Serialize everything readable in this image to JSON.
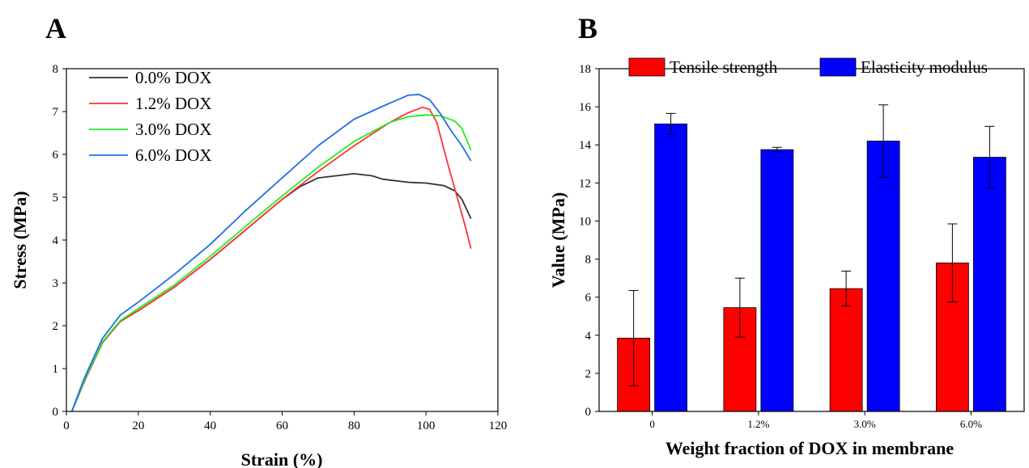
{
  "panels": {
    "a_label": "A",
    "b_label": "B"
  },
  "colors": {
    "black": "#333333",
    "red": "#ff3333",
    "green": "#22ee22",
    "blue": "#1f6fe6",
    "bar_red": "#ff0000",
    "bar_blue": "#0000ff"
  },
  "chart_data": [
    {
      "type": "line",
      "panel": "A",
      "xlabel": "Strain (%)",
      "ylabel": "Stress (MPa)",
      "xlim": [
        0,
        120
      ],
      "ylim": [
        0,
        8
      ],
      "xticks": [
        0,
        20,
        40,
        60,
        80,
        100,
        120
      ],
      "yticks": [
        0,
        1,
        2,
        3,
        4,
        5,
        6,
        7,
        8
      ],
      "legend_position": "top-left",
      "series": [
        {
          "name": "0.0% DOX",
          "color": "#333333",
          "points": [
            [
              1.5,
              0
            ],
            [
              5,
              0.7
            ],
            [
              10,
              1.6
            ],
            [
              15,
              2.1
            ],
            [
              20,
              2.35
            ],
            [
              30,
              2.9
            ],
            [
              40,
              3.55
            ],
            [
              50,
              4.25
            ],
            [
              60,
              4.95
            ],
            [
              65,
              5.25
            ],
            [
              70,
              5.45
            ],
            [
              75,
              5.5
            ],
            [
              80,
              5.55
            ],
            [
              85,
              5.5
            ],
            [
              88,
              5.42
            ],
            [
              95,
              5.35
            ],
            [
              100,
              5.33
            ],
            [
              105,
              5.27
            ],
            [
              108,
              5.15
            ],
            [
              110,
              4.95
            ],
            [
              112.5,
              4.5
            ]
          ]
        },
        {
          "name": "1.2% DOX",
          "color": "#ff3333",
          "points": [
            [
              1.5,
              0
            ],
            [
              5,
              0.7
            ],
            [
              10,
              1.6
            ],
            [
              15,
              2.1
            ],
            [
              20,
              2.35
            ],
            [
              30,
              2.9
            ],
            [
              40,
              3.55
            ],
            [
              50,
              4.25
            ],
            [
              60,
              4.95
            ],
            [
              70,
              5.6
            ],
            [
              80,
              6.2
            ],
            [
              90,
              6.75
            ],
            [
              95,
              6.97
            ],
            [
              99,
              7.1
            ],
            [
              101,
              7.05
            ],
            [
              103,
              6.75
            ],
            [
              106,
              5.8
            ],
            [
              109,
              4.9
            ],
            [
              111,
              4.3
            ],
            [
              112.5,
              3.8
            ]
          ]
        },
        {
          "name": "3.0% DOX",
          "color": "#22ee22",
          "points": [
            [
              1.5,
              0
            ],
            [
              5,
              0.72
            ],
            [
              10,
              1.62
            ],
            [
              15,
              2.12
            ],
            [
              20,
              2.4
            ],
            [
              30,
              2.95
            ],
            [
              40,
              3.62
            ],
            [
              50,
              4.33
            ],
            [
              60,
              5.03
            ],
            [
              70,
              5.7
            ],
            [
              80,
              6.3
            ],
            [
              90,
              6.75
            ],
            [
              95,
              6.88
            ],
            [
              100,
              6.92
            ],
            [
              104,
              6.9
            ],
            [
              108,
              6.78
            ],
            [
              110,
              6.6
            ],
            [
              112.5,
              6.1
            ]
          ]
        },
        {
          "name": "6.0% DOX",
          "color": "#1f6fe6",
          "points": [
            [
              1.5,
              0
            ],
            [
              5,
              0.78
            ],
            [
              10,
              1.7
            ],
            [
              15,
              2.25
            ],
            [
              20,
              2.55
            ],
            [
              30,
              3.2
            ],
            [
              40,
              3.9
            ],
            [
              50,
              4.7
            ],
            [
              60,
              5.45
            ],
            [
              70,
              6.2
            ],
            [
              80,
              6.82
            ],
            [
              90,
              7.2
            ],
            [
              95,
              7.38
            ],
            [
              98,
              7.4
            ],
            [
              101,
              7.28
            ],
            [
              104,
              6.95
            ],
            [
              107,
              6.55
            ],
            [
              110,
              6.2
            ],
            [
              112.5,
              5.85
            ]
          ]
        }
      ]
    },
    {
      "type": "bar",
      "panel": "B",
      "xlabel": "Weight fraction of DOX in membrane",
      "ylabel": "Value (MPa)",
      "categories": [
        "0",
        "1.2%",
        "3.0%",
        "6.0%"
      ],
      "ylim": [
        0,
        18
      ],
      "yticks": [
        0,
        2,
        4,
        6,
        8,
        10,
        12,
        14,
        16,
        18
      ],
      "legend_position": "top",
      "series": [
        {
          "name": "Tensile strength",
          "color": "#ff0000",
          "values": [
            3.85,
            5.45,
            6.45,
            7.8
          ],
          "errors": [
            2.5,
            1.55,
            0.92,
            2.05
          ]
        },
        {
          "name": "Elasticity modulus",
          "color": "#0000ff",
          "values": [
            15.1,
            13.75,
            14.2,
            13.35
          ],
          "errors": [
            0.55,
            0.12,
            1.9,
            1.62
          ]
        }
      ]
    }
  ]
}
